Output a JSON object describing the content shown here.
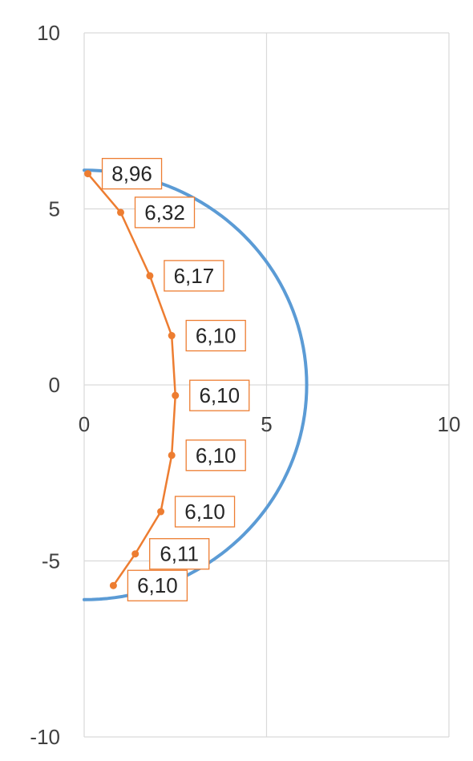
{
  "chart_data": {
    "type": "scatter",
    "xlim": [
      0,
      10
    ],
    "ylim": [
      -10,
      10
    ],
    "x_ticks": [
      0,
      5,
      10
    ],
    "y_ticks": [
      10,
      5,
      0,
      -5,
      -10
    ],
    "grid": true,
    "colors": {
      "circle": "#5B9BD5",
      "points": "#ED7D31",
      "grid": "#D9D9D9"
    },
    "series": [
      {
        "type": "line",
        "radius": 6.1,
        "x": [
          0.0,
          1.06,
          2.09,
          3.05,
          3.92,
          4.67,
          5.28,
          5.73,
          6.01,
          6.1,
          6.01,
          5.73,
          5.28,
          4.67,
          3.92,
          3.05,
          2.09,
          1.06,
          0.0
        ],
        "y": [
          6.1,
          6.01,
          5.73,
          5.28,
          4.67,
          3.92,
          3.05,
          2.09,
          1.06,
          0.0,
          -1.06,
          -2.09,
          -3.05,
          -3.92,
          -4.67,
          -5.28,
          -5.73,
          -6.01,
          -6.1
        ]
      },
      {
        "type": "line-markers",
        "x": [
          0.1,
          1.0,
          1.8,
          2.4,
          2.5,
          2.4,
          2.1,
          1.4,
          0.8
        ],
        "y": [
          6.0,
          4.9,
          3.1,
          1.4,
          -0.3,
          -2.0,
          -3.6,
          -4.8,
          -5.7
        ],
        "labels": [
          "8,96",
          "6,32",
          "6,17",
          "6,10",
          "6,10",
          "6,10",
          "6,10",
          "6,11",
          "6,10"
        ]
      }
    ]
  }
}
